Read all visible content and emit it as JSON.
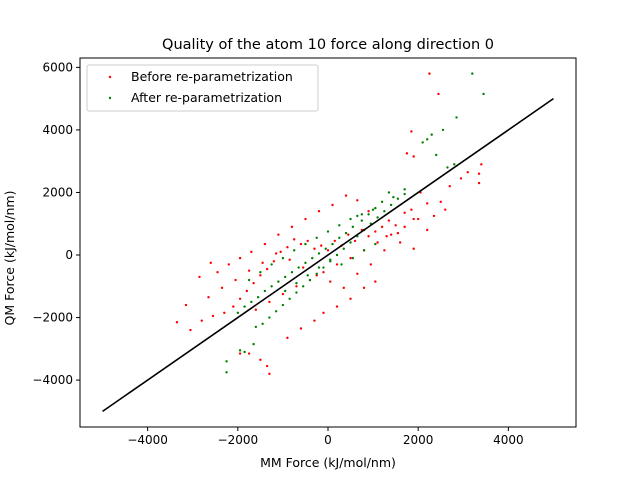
{
  "chart_data": {
    "type": "scatter",
    "title": "Quality of the atom 10 force along direction 0",
    "xlabel": "MM Force (kJ/mol/nm)",
    "ylabel": "QM Force (kJ/mol/nm)",
    "xlim": [
      -5500,
      5500
    ],
    "ylim": [
      -5500,
      6300
    ],
    "xticks": [
      -4000,
      -2000,
      0,
      2000,
      4000
    ],
    "xtick_labels": [
      "−4000",
      "−2000",
      "0",
      "2000",
      "4000"
    ],
    "yticks": [
      -4000,
      -2000,
      0,
      2000,
      4000,
      6000
    ],
    "ytick_labels": [
      "−4000",
      "−2000",
      "0",
      "2000",
      "4000",
      "6000"
    ],
    "grid": false,
    "legend_position": "top-left",
    "series": [
      {
        "name": "Before re-parametrization",
        "color": "#ff0000",
        "marker": "dot",
        "points": [
          [
            2250,
            5800
          ],
          [
            2450,
            5150
          ],
          [
            1850,
            3950
          ],
          [
            1750,
            3250
          ],
          [
            1900,
            3150
          ],
          [
            3400,
            2900
          ],
          [
            3350,
            2600
          ],
          [
            3100,
            2650
          ],
          [
            2950,
            2450
          ],
          [
            3350,
            2300
          ],
          [
            2200,
            1650
          ],
          [
            2600,
            1450
          ],
          [
            2350,
            1250
          ],
          [
            1900,
            1150
          ],
          [
            1700,
            1350
          ],
          [
            1500,
            950
          ],
          [
            1350,
            1100
          ],
          [
            1200,
            900
          ],
          [
            1050,
            750
          ],
          [
            900,
            600
          ],
          [
            750,
            800
          ],
          [
            600,
            450
          ],
          [
            450,
            650
          ],
          [
            300,
            300
          ],
          [
            150,
            450
          ],
          [
            0,
            150
          ],
          [
            -150,
            300
          ],
          [
            -300,
            200
          ],
          [
            -450,
            450
          ],
          [
            -600,
            350
          ],
          [
            -750,
            500
          ],
          [
            -900,
            250
          ],
          [
            -1050,
            100
          ],
          [
            -1200,
            -200
          ],
          [
            -1350,
            -450
          ],
          [
            -1500,
            -650
          ],
          [
            -1650,
            -900
          ],
          [
            -1800,
            -1150
          ],
          [
            -1950,
            -1400
          ],
          [
            -2100,
            -1650
          ],
          [
            -2300,
            -1850
          ],
          [
            -2550,
            -1950
          ],
          [
            -2800,
            -2100
          ],
          [
            -3350,
            -2150
          ],
          [
            -3150,
            -1600
          ],
          [
            -3050,
            -2400
          ],
          [
            -1950,
            -3150
          ],
          [
            -1750,
            -3150
          ],
          [
            -1500,
            -3350
          ],
          [
            -1350,
            -3550
          ],
          [
            -1300,
            -3800
          ],
          [
            -900,
            -2650
          ],
          [
            -600,
            -2350
          ],
          [
            -300,
            -2100
          ],
          [
            -100,
            -1850
          ],
          [
            200,
            -1650
          ],
          [
            500,
            -1400
          ],
          [
            800,
            -1050
          ],
          [
            1050,
            -850
          ],
          [
            -2450,
            -550
          ],
          [
            -2200,
            -300
          ],
          [
            -1950,
            -100
          ],
          [
            -1700,
            100
          ],
          [
            -1400,
            350
          ],
          [
            -1100,
            650
          ],
          [
            -800,
            900
          ],
          [
            -500,
            1150
          ],
          [
            -200,
            1400
          ],
          [
            100,
            1600
          ],
          [
            400,
            1900
          ],
          [
            650,
            1750
          ],
          [
            900,
            1400
          ],
          [
            1300,
            600
          ],
          [
            1600,
            400
          ],
          [
            1900,
            200
          ],
          [
            2200,
            800
          ],
          [
            2500,
            1700
          ],
          [
            2700,
            2200
          ],
          [
            -2650,
            -1350
          ],
          [
            -2350,
            -1050
          ],
          [
            -2050,
            -800
          ],
          [
            -1750,
            -500
          ],
          [
            -1450,
            -250
          ],
          [
            -1150,
            50
          ],
          [
            -850,
            -150
          ],
          [
            -550,
            -400
          ],
          [
            -250,
            -650
          ],
          [
            50,
            -850
          ],
          [
            350,
            -1050
          ],
          [
            650,
            -600
          ],
          [
            950,
            -300
          ],
          [
            1250,
            150
          ],
          [
            1550,
            700
          ],
          [
            1850,
            1450
          ],
          [
            2050,
            2000
          ],
          [
            -1600,
            -1750
          ],
          [
            -1300,
            -1500
          ],
          [
            -1000,
            -1250
          ],
          [
            -700,
            -1000
          ],
          [
            -400,
            -800
          ],
          [
            -100,
            -550
          ],
          [
            200,
            -300
          ],
          [
            500,
            -100
          ],
          [
            800,
            150
          ],
          [
            1100,
            400
          ],
          [
            1400,
            650
          ],
          [
            1700,
            900
          ],
          [
            2000,
            1150
          ],
          [
            -2850,
            -700
          ],
          [
            -2600,
            -250
          ]
        ]
      },
      {
        "name": "After re-parametrization",
        "color": "#008000",
        "marker": "dot",
        "points": [
          [
            3200,
            5800
          ],
          [
            3450,
            5150
          ],
          [
            2850,
            4400
          ],
          [
            2550,
            4000
          ],
          [
            2300,
            3850
          ],
          [
            2200,
            3700
          ],
          [
            2100,
            3600
          ],
          [
            2400,
            3200
          ],
          [
            2650,
            2800
          ],
          [
            2800,
            2900
          ],
          [
            1700,
            2100
          ],
          [
            1450,
            1850
          ],
          [
            1350,
            2000
          ],
          [
            1200,
            1700
          ],
          [
            1050,
            1500
          ],
          [
            900,
            1300
          ],
          [
            750,
            1100
          ],
          [
            650,
            1250
          ],
          [
            550,
            900
          ],
          [
            400,
            700
          ],
          [
            250,
            550
          ],
          [
            100,
            350
          ],
          [
            -50,
            200
          ],
          [
            -200,
            50
          ],
          [
            -350,
            -100
          ],
          [
            -500,
            -250
          ],
          [
            -650,
            -400
          ],
          [
            -800,
            -550
          ],
          [
            -950,
            -700
          ],
          [
            -1100,
            -850
          ],
          [
            -1250,
            -1000
          ],
          [
            -1400,
            -1150
          ],
          [
            -1550,
            -1350
          ],
          [
            -1700,
            -1500
          ],
          [
            -1850,
            -1650
          ],
          [
            -2000,
            -1850
          ],
          [
            -2250,
            -3400
          ],
          [
            -2250,
            -3750
          ],
          [
            -1950,
            -3050
          ],
          [
            -1850,
            -3100
          ],
          [
            -1650,
            -2850
          ],
          [
            -1600,
            -2300
          ],
          [
            -1450,
            -2200
          ],
          [
            -1300,
            -2000
          ],
          [
            -1150,
            -1800
          ],
          [
            -1000,
            -1600
          ],
          [
            -850,
            -1400
          ],
          [
            -700,
            -1200
          ],
          [
            -550,
            -1000
          ],
          [
            -400,
            -800
          ],
          [
            -250,
            -600
          ],
          [
            -100,
            -400
          ],
          [
            50,
            -200
          ],
          [
            200,
            0
          ],
          [
            350,
            200
          ],
          [
            500,
            400
          ],
          [
            650,
            600
          ],
          [
            800,
            800
          ],
          [
            950,
            1000
          ],
          [
            1100,
            1200
          ],
          [
            1250,
            1400
          ],
          [
            1400,
            1600
          ],
          [
            1550,
            1800
          ],
          [
            1700,
            1950
          ],
          [
            -1750,
            -800
          ],
          [
            -1500,
            -550
          ],
          [
            -1250,
            -300
          ],
          [
            -1000,
            -100
          ],
          [
            -750,
            150
          ],
          [
            -500,
            350
          ],
          [
            -250,
            550
          ],
          [
            0,
            750
          ],
          [
            250,
            950
          ],
          [
            500,
            1150
          ],
          [
            750,
            1300
          ],
          [
            1000,
            1450
          ],
          [
            300,
            -300
          ],
          [
            550,
            -100
          ],
          [
            800,
            150
          ],
          [
            1050,
            350
          ],
          [
            -950,
            -1150
          ],
          [
            -700,
            -900
          ],
          [
            -450,
            -650
          ],
          [
            -200,
            -400
          ],
          [
            50,
            -150
          ]
        ]
      },
      {
        "name": "",
        "color": "#000000",
        "type": "line",
        "points": [
          [
            -5000,
            -5000
          ],
          [
            5000,
            5000
          ]
        ]
      }
    ]
  }
}
